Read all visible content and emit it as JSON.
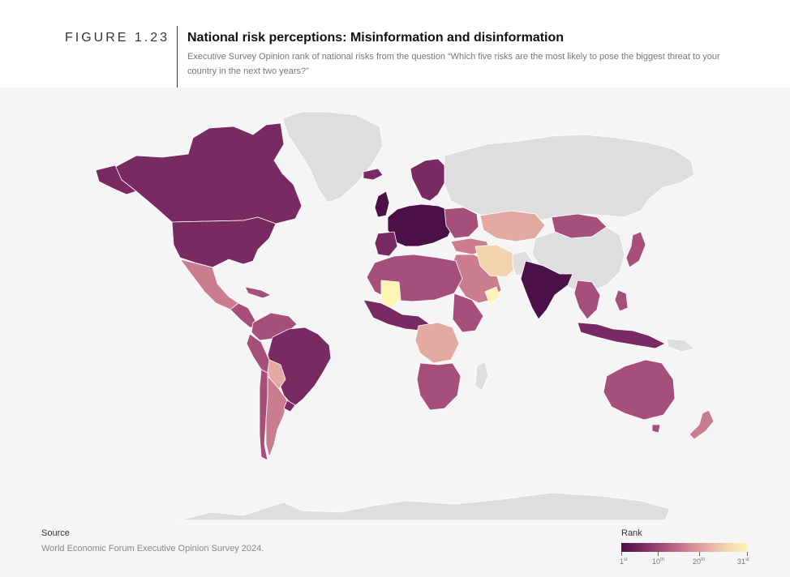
{
  "figure": {
    "label": "FIGURE 1.23",
    "title": "National risk perceptions: Misinformation and disinformation",
    "subtitle": "Executive Survey Opinion rank of national risks from the question “Which five risks are the most likely to pose the biggest threat to your country in the next two years?”"
  },
  "source": {
    "label": "Source",
    "text": "World Economic Forum Executive Opinion Survey 2024."
  },
  "legend": {
    "title": "Rank",
    "ticks": [
      {
        "num": "1",
        "suffix": "st"
      },
      {
        "num": "10",
        "suffix": "th"
      },
      {
        "num": "20",
        "suffix": "th"
      },
      {
        "num": "31",
        "suffix": "st"
      }
    ],
    "colors": {
      "rank_1": "#4a1047",
      "rank_10": "#7a2a62",
      "rank_20": "#cb7d90",
      "rank_31": "#fdf4b3",
      "no_data": "#dedede"
    }
  }
}
